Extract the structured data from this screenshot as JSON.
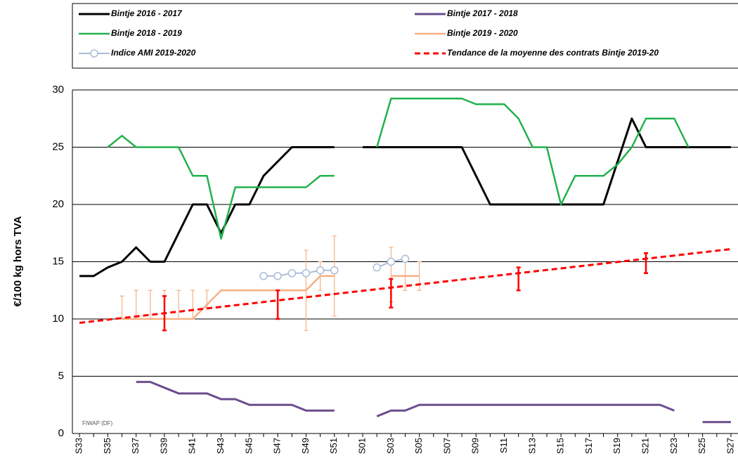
{
  "chart_data": {
    "type": "line",
    "y_label": "€/100 kg hors TVA",
    "annotation": "FIWAP (DF)",
    "categories": [
      "S33",
      null,
      "S35",
      null,
      "S37",
      null,
      "S39",
      null,
      "S41",
      null,
      "S43",
      null,
      "S45",
      null,
      "S47",
      null,
      "S49",
      null,
      "S51",
      null,
      "S01",
      null,
      "S03",
      null,
      "S05",
      null,
      "S07",
      null,
      "S09",
      null,
      "S11",
      null,
      "S13",
      null,
      "S15",
      null,
      "S17",
      null,
      "S19",
      null,
      "S21",
      null,
      "S23",
      null,
      "S25",
      null,
      "S27"
    ],
    "ylim": [
      0,
      30
    ],
    "yticks": [
      0,
      5,
      10,
      15,
      20,
      25,
      30
    ],
    "grid": true,
    "series": [
      {
        "name": "Bintje 2016 - 2017",
        "color": "#000000",
        "width": 3,
        "values": [
          13.75,
          13.75,
          14.5,
          15,
          16.25,
          15,
          15,
          17.5,
          20,
          20,
          17.5,
          20,
          20,
          22.5,
          23.75,
          25,
          25,
          25,
          25,
          null,
          25,
          25,
          25,
          25,
          25,
          25,
          25,
          25,
          22.5,
          20,
          20,
          20,
          20,
          20,
          20,
          20,
          20,
          20,
          23.75,
          27.5,
          25,
          25,
          25,
          25,
          25,
          25,
          25
        ]
      },
      {
        "name": "Bintje 2017 - 2018",
        "color": "#6a4e8c",
        "width": 3,
        "values": [
          null,
          null,
          null,
          null,
          4.5,
          4.5,
          4,
          3.5,
          3.5,
          3.5,
          3,
          3,
          2.5,
          2.5,
          2.5,
          2.5,
          2,
          2,
          2,
          null,
          null,
          1.5,
          2,
          2,
          2.5,
          2.5,
          2.5,
          2.5,
          2.5,
          2.5,
          2.5,
          2.5,
          2.5,
          2.5,
          2.5,
          2.5,
          2.5,
          2.5,
          2.5,
          2.5,
          2.5,
          2.5,
          2,
          null,
          1,
          1,
          1
        ]
      },
      {
        "name": "Bintje 2018 - 2019",
        "color": "#22b14c",
        "width": 2.5,
        "values": [
          null,
          null,
          25,
          26,
          25,
          25,
          25,
          25,
          22.5,
          22.5,
          17,
          21.5,
          21.5,
          21.5,
          21.5,
          21.5,
          21.5,
          22.5,
          22.5,
          null,
          null,
          25,
          29.25,
          29.25,
          29.25,
          29.25,
          29.25,
          29.25,
          28.75,
          28.75,
          28.75,
          27.5,
          25,
          25,
          20,
          22.5,
          22.5,
          22.5,
          23.5,
          25,
          27.5,
          27.5,
          27.5,
          25,
          null,
          null,
          null
        ]
      },
      {
        "name": "Bintje 2019 - 2020",
        "color": "#f4b183",
        "width": 2.5,
        "values": [
          null,
          null,
          null,
          10,
          10,
          10,
          10,
          10,
          10,
          11.25,
          12.5,
          12.5,
          12.5,
          12.5,
          12.5,
          12.5,
          12.5,
          13.75,
          13.75,
          null,
          null,
          null,
          13.75,
          13.75,
          13.75,
          null,
          null,
          null,
          null,
          null,
          null,
          null,
          null,
          null,
          null,
          null,
          null,
          null,
          null,
          null,
          null,
          null,
          null,
          null,
          null,
          null,
          null
        ],
        "error_low": [
          null,
          null,
          null,
          10,
          10,
          10,
          10,
          10,
          10,
          11,
          null,
          null,
          null,
          null,
          null,
          null,
          9,
          12.5,
          10.25,
          null,
          null,
          null,
          11.5,
          12.5,
          12.5,
          null,
          null,
          null,
          null,
          null,
          null,
          null,
          null,
          null,
          null,
          null,
          null,
          null,
          null,
          null,
          null,
          null,
          null,
          null,
          null,
          null,
          null
        ],
        "error_high": [
          null,
          null,
          null,
          12,
          12.5,
          12.5,
          12.5,
          12.5,
          12.5,
          12.5,
          null,
          null,
          null,
          null,
          null,
          null,
          16,
          15,
          17.25,
          null,
          null,
          null,
          16.25,
          15.5,
          15,
          null,
          null,
          null,
          null,
          null,
          null,
          null,
          null,
          null,
          null,
          null,
          null,
          null,
          null,
          null,
          null,
          null,
          null,
          null,
          null,
          null,
          null
        ]
      },
      {
        "name": "Indice AMI 2019-2020",
        "color": "#a9bcd8",
        "width": 2,
        "marker": "circle",
        "values": [
          null,
          null,
          null,
          null,
          null,
          null,
          null,
          null,
          null,
          null,
          null,
          null,
          null,
          13.75,
          13.75,
          14,
          14,
          14.25,
          14.25,
          null,
          null,
          14.5,
          15,
          15.25,
          null,
          null,
          null,
          null,
          null,
          null,
          null,
          null,
          null,
          null,
          null,
          null,
          null,
          null,
          null,
          null,
          null,
          null,
          null,
          null,
          null,
          null,
          null
        ]
      },
      {
        "name": "Tendance de la moyenne des contrats Bintje 2019-20",
        "color": "#ff0000",
        "width": 3,
        "dash": true,
        "values": [
          9.66,
          9.8,
          9.94,
          10.08,
          10.22,
          10.36,
          10.5,
          10.64,
          10.78,
          10.92,
          11.06,
          11.2,
          11.34,
          11.48,
          11.62,
          11.76,
          11.9,
          12.04,
          12.18,
          12.32,
          12.46,
          12.6,
          12.74,
          12.88,
          13.02,
          13.16,
          13.3,
          13.44,
          13.58,
          13.72,
          13.86,
          14,
          14.14,
          14.28,
          14.42,
          14.56,
          14.7,
          14.84,
          14.98,
          15.12,
          15.26,
          15.4,
          15.54,
          15.68,
          15.82,
          15.96,
          16.1
        ],
        "error_low": [
          null,
          null,
          null,
          null,
          null,
          null,
          9,
          null,
          null,
          null,
          null,
          null,
          null,
          null,
          10,
          null,
          null,
          null,
          null,
          null,
          null,
          null,
          11,
          null,
          null,
          null,
          null,
          null,
          null,
          null,
          null,
          12.5,
          null,
          null,
          null,
          null,
          null,
          null,
          null,
          null,
          14,
          null,
          null,
          null,
          null,
          null,
          null
        ],
        "error_high": [
          null,
          null,
          null,
          null,
          null,
          null,
          12,
          null,
          null,
          null,
          null,
          null,
          null,
          null,
          12.5,
          null,
          null,
          null,
          null,
          null,
          null,
          null,
          13.5,
          null,
          null,
          null,
          null,
          null,
          null,
          null,
          null,
          14.5,
          null,
          null,
          null,
          null,
          null,
          null,
          null,
          null,
          15.75,
          null,
          null,
          null,
          null,
          null,
          null
        ]
      }
    ]
  }
}
